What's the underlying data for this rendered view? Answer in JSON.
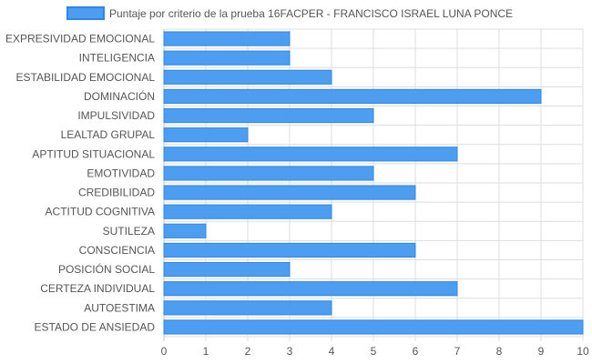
{
  "chart_data": {
    "type": "bar",
    "orientation": "horizontal",
    "categories": [
      "EXPRESIVIDAD EMOCIONAL",
      "INTELIGENCIA",
      "ESTABILIDAD EMOCIONAL",
      "DOMINACIÓN",
      "IMPULSIVIDAD",
      "LEALTAD GRUPAL",
      "APTITUD SITUACIONAL",
      "EMOTIVIDAD",
      "CREDIBILIDAD",
      "ACTITUD COGNITIVA",
      "SUTILEZA",
      "CONSCIENCIA",
      "POSICIÓN SOCIAL",
      "CERTEZA INDIVIDUAL",
      "AUTOESTIMA",
      "ESTADO DE ANSIEDAD"
    ],
    "series": [
      {
        "name": "Puntaje por criterio de la prueba 16FACPER - FRANCISCO ISRAEL LUNA PONCE",
        "values": [
          3,
          3,
          4,
          9,
          5,
          2,
          7,
          5,
          6,
          4,
          1,
          6,
          3,
          7,
          4,
          10
        ]
      }
    ],
    "xlim": [
      0,
      10
    ],
    "xticks": [
      "0",
      "1",
      "2",
      "3",
      "4",
      "5",
      "6",
      "7",
      "8",
      "9",
      "10"
    ],
    "grid": true,
    "legend_position": "top",
    "colors": {
      "bar_fill": "#4d9ef0",
      "bar_stroke": "#2f86e6",
      "grid": "#dddddd",
      "axis": "#c6c6c6",
      "text": "#555555"
    }
  }
}
